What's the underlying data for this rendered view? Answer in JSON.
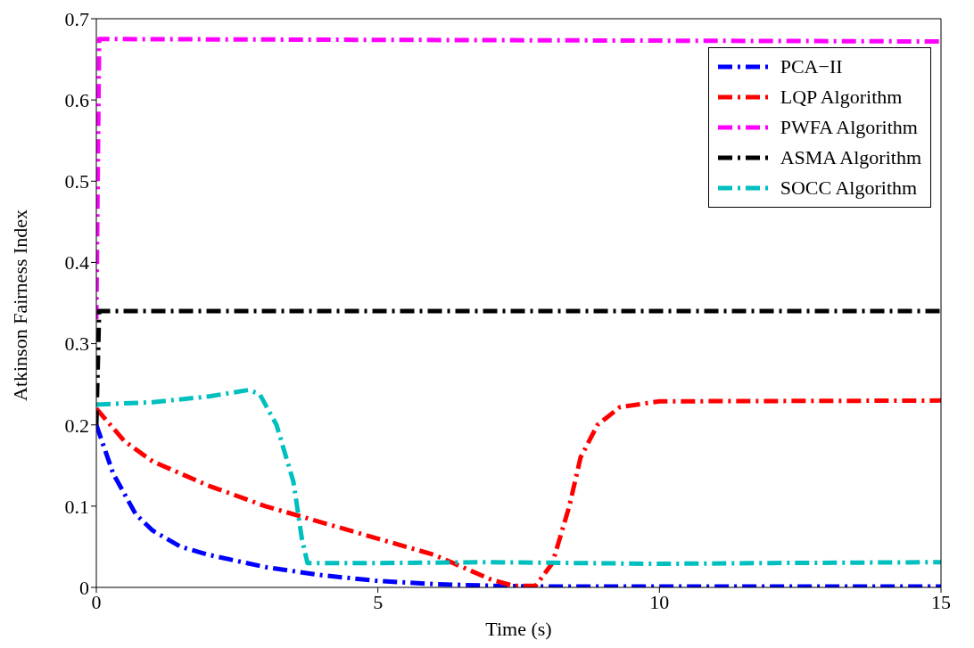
{
  "chart_data": {
    "type": "line",
    "xlabel": "Time (s)",
    "ylabel": "Atkinson Fairness Index",
    "xlim": [
      0,
      15
    ],
    "xticks": [
      0,
      5,
      10,
      15
    ],
    "ylim": [
      0,
      0.7
    ],
    "yticks": [
      0,
      0.1,
      0.2,
      0.3,
      0.4,
      0.5,
      0.6,
      0.7
    ],
    "legend": "top right",
    "line_style": "dashed",
    "marker": "none",
    "series": [
      {
        "name": "PCA−II",
        "color": "#0000ff",
        "x": [
          0,
          0.3,
          0.7,
          1,
          1.5,
          2,
          3,
          4,
          5,
          6,
          7,
          8,
          15
        ],
        "values": [
          0.2,
          0.14,
          0.09,
          0.07,
          0.05,
          0.04,
          0.025,
          0.015,
          0.008,
          0.004,
          0.002,
          0.001,
          0.001
        ]
      },
      {
        "name": "LQP Algorithm",
        "color": "#ff0000",
        "x": [
          0,
          0.5,
          1,
          2,
          3,
          4,
          5,
          6,
          6.5,
          7,
          7.4,
          7.8,
          8.1,
          8.4,
          8.6,
          8.9,
          9.3,
          10,
          15
        ],
        "values": [
          0.22,
          0.18,
          0.155,
          0.125,
          0.1,
          0.08,
          0.06,
          0.04,
          0.025,
          0.01,
          0.002,
          0.002,
          0.03,
          0.1,
          0.16,
          0.2,
          0.222,
          0.229,
          0.23
        ]
      },
      {
        "name": "PWFA Algorithm",
        "color": "#ff00ff",
        "x": [
          0,
          0.05,
          15
        ],
        "values": [
          0.33,
          0.675,
          0.672
        ]
      },
      {
        "name": "ASMA Algorithm",
        "color": "#000000",
        "x": [
          0,
          0.05,
          15
        ],
        "values": [
          0.2,
          0.34,
          0.34
        ]
      },
      {
        "name": "SOCC Algorithm",
        "color": "#00bfbf",
        "x": [
          0,
          1,
          2,
          2.7,
          2.9,
          3.2,
          3.5,
          3.65,
          3.75,
          5,
          7,
          10,
          12,
          15
        ],
        "values": [
          0.225,
          0.228,
          0.235,
          0.243,
          0.238,
          0.2,
          0.13,
          0.06,
          0.03,
          0.03,
          0.031,
          0.029,
          0.03,
          0.031
        ]
      }
    ]
  }
}
